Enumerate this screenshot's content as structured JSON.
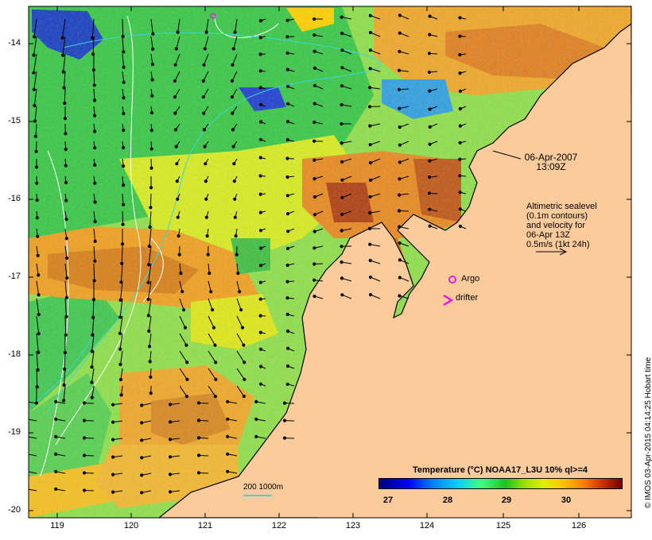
{
  "map": {
    "date_line1": "06-Apr-2007",
    "date_line2": "13:09Z",
    "altimetry_note": [
      "Altimetric sealevel",
      "(0.1m contours)",
      "and velocity for",
      "06-Apr 13Z",
      "0.5m/s (1kt 24h)"
    ],
    "argo_label": "Argo",
    "drifter_label": "drifter",
    "depth_label": "200  1000m",
    "credit": "© IMOS 03-Apr-2015 04:14:25 Hobart time",
    "lat_ticks": [
      "-14",
      "-15",
      "-16",
      "-17",
      "-18",
      "-19",
      "-20"
    ],
    "lon_ticks": [
      "119",
      "120",
      "121",
      "122",
      "123",
      "124",
      "125",
      "126"
    ],
    "colors": {
      "land": "#fbcb9b",
      "argo": "#e020e0",
      "drifter": "#e020e0",
      "contour_200m": "#3fd6d6",
      "sealevel_contour": "#ffffff"
    }
  },
  "legend": {
    "title": "Temperature (°C) NOAA17_L3U 10% ql>=4",
    "ticks": [
      "27",
      "28",
      "29",
      "30"
    ],
    "colors": [
      "#00007f",
      "#0000ff",
      "#0080ff",
      "#00ffff",
      "#40ff80",
      "#20c020",
      "#80e000",
      "#e0f000",
      "#ffc000",
      "#ff8000",
      "#e04000",
      "#a00000",
      "#700000"
    ]
  }
}
